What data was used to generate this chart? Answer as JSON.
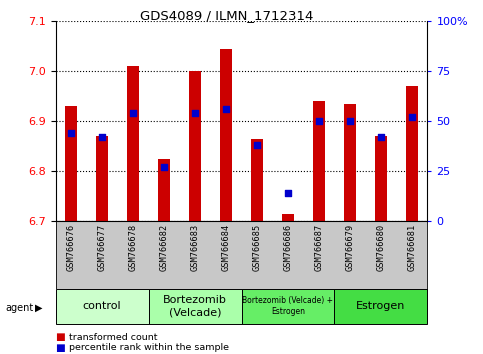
{
  "title": "GDS4089 / ILMN_1712314",
  "samples": [
    "GSM766676",
    "GSM766677",
    "GSM766678",
    "GSM766682",
    "GSM766683",
    "GSM766684",
    "GSM766685",
    "GSM766686",
    "GSM766687",
    "GSM766679",
    "GSM766680",
    "GSM766681"
  ],
  "red_values": [
    6.93,
    6.87,
    7.01,
    6.825,
    7.0,
    7.045,
    6.865,
    6.715,
    6.94,
    6.935,
    6.87,
    6.97
  ],
  "blue_percentiles": [
    44,
    42,
    54,
    27,
    54,
    56,
    38,
    14,
    50,
    50,
    42,
    52
  ],
  "ylim_left": [
    6.7,
    7.1
  ],
  "ylim_right": [
    0,
    100
  ],
  "yticks_left": [
    6.7,
    6.8,
    6.9,
    7.0,
    7.1
  ],
  "yticks_right": [
    0,
    25,
    50,
    75,
    100
  ],
  "ytick_labels_right": [
    "0",
    "25",
    "50",
    "75",
    "100%"
  ],
  "groups": [
    {
      "label": "control",
      "start": 0,
      "end": 3,
      "color": "#ccffcc",
      "fontsize": 8
    },
    {
      "label": "Bortezomib\n(Velcade)",
      "start": 3,
      "end": 6,
      "color": "#aaffaa",
      "fontsize": 8
    },
    {
      "label": "Bortezomib (Velcade) +\nEstrogen",
      "start": 6,
      "end": 9,
      "color": "#66ee66",
      "fontsize": 5.5
    },
    {
      "label": "Estrogen",
      "start": 9,
      "end": 12,
      "color": "#44dd44",
      "fontsize": 8
    }
  ],
  "bar_color": "#cc0000",
  "dot_color": "#0000cc",
  "bar_width": 0.4,
  "dot_size": 18,
  "agent_label": "agent",
  "legend_red": "transformed count",
  "legend_blue": "percentile rank within the sample",
  "xlabel_bg": "#c8c8c8",
  "title_fontsize": 9.5
}
